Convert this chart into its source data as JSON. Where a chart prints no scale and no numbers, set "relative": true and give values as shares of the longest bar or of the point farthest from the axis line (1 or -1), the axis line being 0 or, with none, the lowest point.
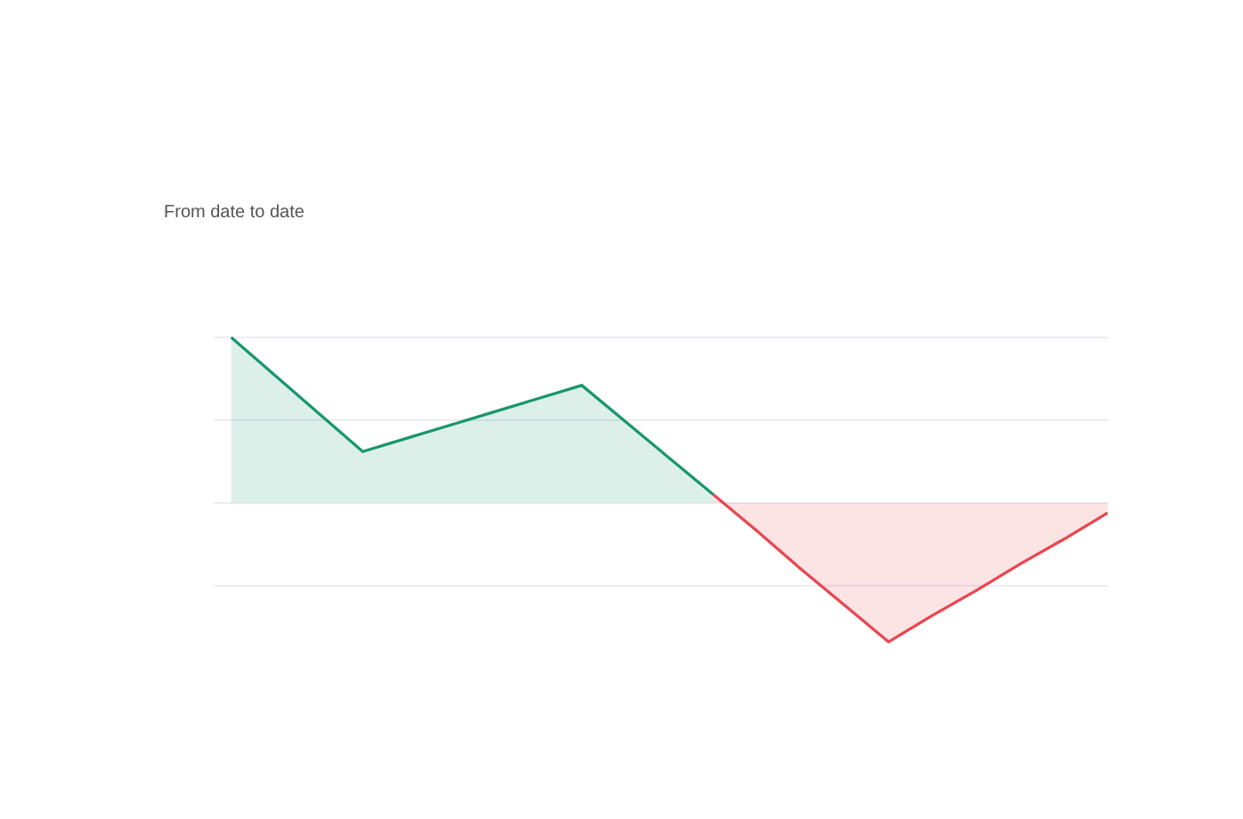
{
  "chart_data": {
    "type": "area",
    "relative": true,
    "categories": [
      null,
      null,
      null,
      null,
      null,
      null,
      null,
      null,
      null,
      null,
      null,
      null,
      null,
      null,
      null,
      null,
      null,
      null,
      null,
      null,
      null
    ],
    "series": [
      {
        "color": "#17976a",
        "values": [
          1,
          0.77,
          0.54,
          0.31,
          0.39,
          0.47,
          0.55,
          0.63,
          0.71,
          0.49,
          0.27,
          0.05,
          null,
          null,
          null,
          null,
          null,
          null,
          null,
          null,
          null
        ]
      },
      {
        "color": "#e8474f",
        "values": [
          null,
          null,
          null,
          null,
          null,
          null,
          null,
          null,
          null,
          null,
          null,
          0.05,
          -0.17,
          -0.4,
          -0.62,
          -0.84,
          -0.68,
          -0.53,
          -0.37,
          -0.22,
          -0.06
        ]
      }
    ],
    "annotations": [
      "From date to date"
    ],
    "grid": "y"
  }
}
